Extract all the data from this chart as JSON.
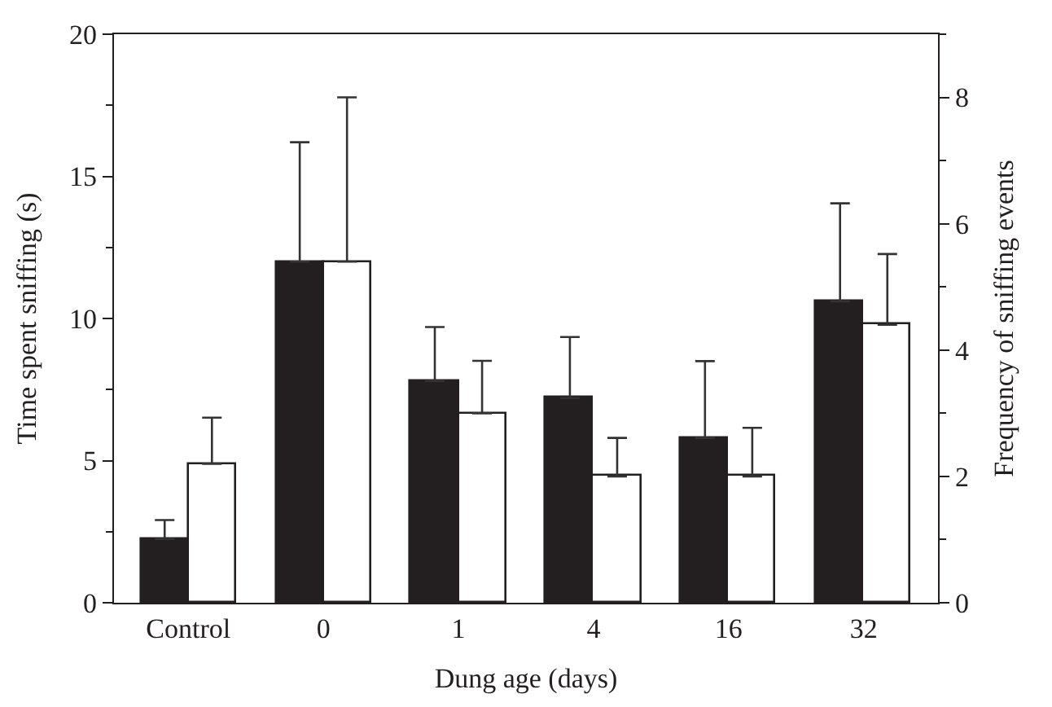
{
  "chart_data": {
    "type": "bar",
    "xlabel": "Dung age (days)",
    "ylabel": "Time spent sniffing (s)",
    "y2label": "Frequency of sniffing events",
    "categories": [
      "Control",
      "0",
      "1",
      "4",
      "16",
      "32"
    ],
    "series": [
      {
        "color": "#231f20",
        "values": [
          2.24,
          12.0,
          7.8,
          7.2,
          5.8,
          10.6
        ],
        "errors": [
          [
            2.24,
            2.91
          ],
          [
            12.0,
            16.2
          ],
          [
            7.8,
            9.7
          ],
          [
            7.2,
            9.35
          ],
          [
            5.8,
            8.5
          ],
          [
            10.6,
            14.05
          ]
        ]
      },
      {
        "color": "#ffffff",
        "axis": "y2",
        "values": [
          2.2,
          5.4,
          3.0,
          2.0,
          2.0,
          4.4
        ],
        "errors": [
          [
            2.2,
            2.93
          ],
          [
            5.4,
            8.0
          ],
          [
            3.0,
            3.83
          ],
          [
            2.0,
            2.61
          ],
          [
            2.0,
            2.77
          ],
          [
            4.4,
            5.52
          ]
        ]
      }
    ],
    "ylim": [
      0,
      20
    ],
    "yticks": [
      0,
      5,
      10,
      15,
      20
    ],
    "y2lim": [
      0,
      9
    ],
    "y2ticks": [
      0,
      2,
      4,
      6,
      8
    ]
  }
}
